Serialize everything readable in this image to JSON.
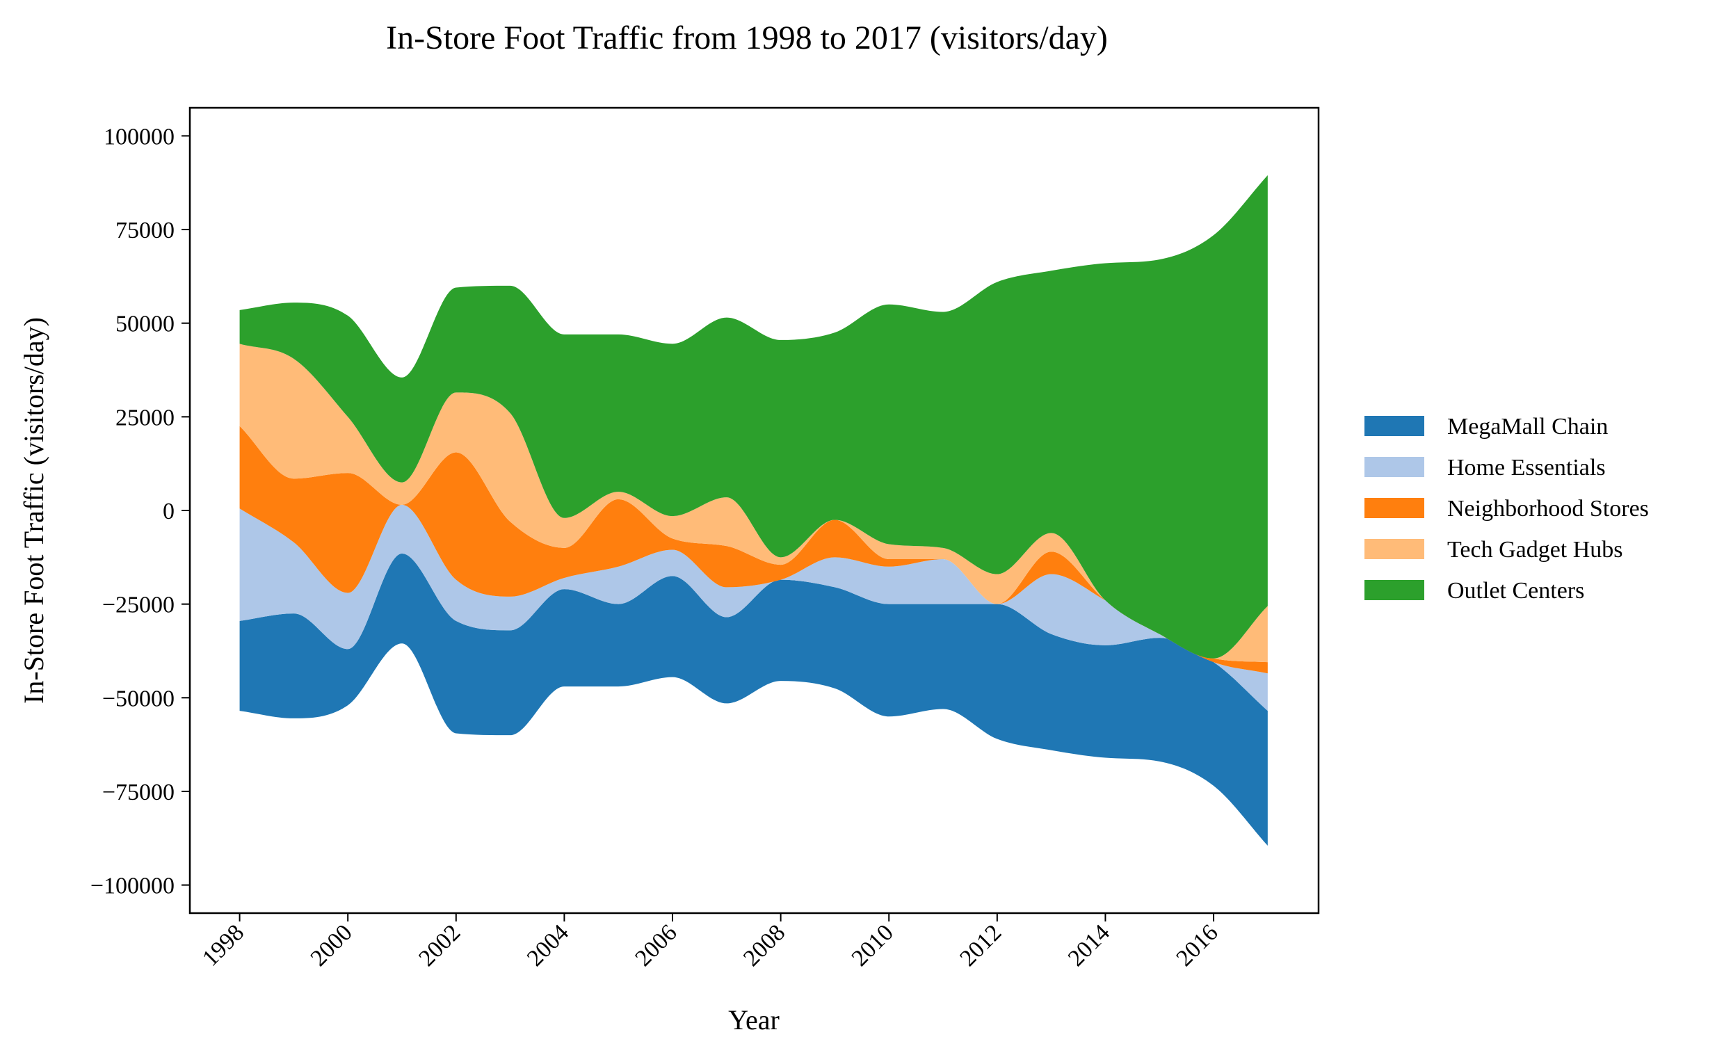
{
  "chart_data": {
    "type": "area",
    "subtype": "streamgraph",
    "title": "In-Store Foot Traffic from 1998 to 2017 (visitors/day)",
    "xlabel": "Year",
    "ylabel": "In-Store Foot Traffic (visitors/day)",
    "x": [
      1998,
      1999,
      2000,
      2001,
      2002,
      2003,
      2004,
      2005,
      2006,
      2007,
      2008,
      2009,
      2010,
      2011,
      2012,
      2013,
      2014,
      2015,
      2016,
      2017
    ],
    "xticks": [
      1998,
      2000,
      2002,
      2004,
      2006,
      2008,
      2010,
      2012,
      2014,
      2016
    ],
    "xtick_labels": [
      "1998",
      "2000",
      "2002",
      "2004",
      "2006",
      "2008",
      "2010",
      "2012",
      "2014",
      "2016"
    ],
    "xlim": [
      1997.08,
      2017.94
    ],
    "yticks": [
      100000,
      75000,
      50000,
      25000,
      0,
      -25000,
      -50000,
      -75000,
      -100000
    ],
    "ytick_labels": [
      "100000",
      "75000",
      "50000",
      "25000",
      "0",
      "−25000",
      "−50000",
      "−75000",
      "−100000"
    ],
    "ylim": [
      -107500,
      107500
    ],
    "baseline": "symmetric",
    "grid": false,
    "legend_position": "right",
    "series": [
      {
        "name": "MegaMall Chain",
        "color": "#1f77b4",
        "values": [
          24000,
          28000,
          15000,
          24000,
          30000,
          28000,
          26000,
          22000,
          27000,
          23000,
          27000,
          27000,
          30000,
          28000,
          36000,
          31000,
          30000,
          33000,
          33000,
          36000
        ]
      },
      {
        "name": "Home Essentials",
        "color": "#aec7e8",
        "values": [
          30000,
          19000,
          15000,
          13000,
          11000,
          9000,
          3000,
          10000,
          7000,
          8000,
          0,
          8000,
          10000,
          12000,
          0,
          16000,
          12000,
          1000,
          0,
          10000
        ]
      },
      {
        "name": "Neighborhood Stores",
        "color": "#ff7f0e",
        "values": [
          22000,
          17000,
          32000,
          0,
          34000,
          20000,
          8000,
          18000,
          3000,
          11000,
          4000,
          10000,
          2000,
          0,
          0,
          6000,
          0,
          0,
          1000,
          3000
        ]
      },
      {
        "name": "Tech Gadget Hubs",
        "color": "#ffbb78",
        "values": [
          22000,
          32000,
          15000,
          6000,
          16000,
          29000,
          8000,
          2000,
          6000,
          13000,
          2000,
          0,
          4000,
          3000,
          8000,
          5000,
          0,
          0,
          0,
          15000
        ]
      },
      {
        "name": "Outlet Centers",
        "color": "#2ca02c",
        "values": [
          9000,
          15000,
          27000,
          28000,
          28000,
          34000,
          49000,
          42000,
          46000,
          48000,
          58000,
          50000,
          64000,
          63000,
          78000,
          70000,
          90000,
          100000,
          113000,
          115000
        ]
      }
    ]
  }
}
